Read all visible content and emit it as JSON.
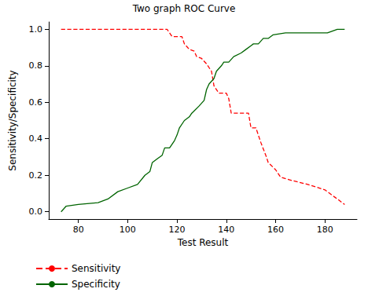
{
  "chart_data": {
    "type": "line",
    "title": "Two graph ROC Curve",
    "x_label": "Test Result",
    "y_label": "Sensitivity/Specificity",
    "xlim": [
      68,
      193
    ],
    "xticks": [
      80,
      100,
      120,
      140,
      160,
      180
    ],
    "ylim": [
      -0.04,
      1.04
    ],
    "yticks": [
      {
        "value": 0,
        "label": "0.0"
      },
      {
        "value": 0.2,
        "label": "0.2"
      },
      {
        "value": 0.4,
        "label": "0.4"
      },
      {
        "value": 0.6,
        "label": "0.6"
      },
      {
        "value": 0.8,
        "label": "0.8"
      },
      {
        "value": 1,
        "label": "1.0"
      }
    ],
    "grid": false,
    "legend": "bottom",
    "series": [
      {
        "name": "Sensitivity",
        "color": "#ff0000",
        "line_style": "dashed",
        "x": [
          73,
          116,
          118,
          122,
          123,
          125,
          127,
          128,
          130,
          132,
          134,
          135,
          137,
          140,
          141,
          142,
          149,
          150,
          152,
          154,
          156,
          157,
          160,
          162,
          167,
          173,
          180,
          184,
          188
        ],
        "values": [
          1.0,
          1.0,
          0.96,
          0.96,
          0.92,
          0.89,
          0.88,
          0.85,
          0.84,
          0.81,
          0.77,
          0.69,
          0.65,
          0.65,
          0.62,
          0.54,
          0.54,
          0.46,
          0.46,
          0.38,
          0.31,
          0.27,
          0.23,
          0.19,
          0.17,
          0.15,
          0.12,
          0.08,
          0.04
        ]
      },
      {
        "name": "Specificity",
        "color": "#006400",
        "line_style": "solid",
        "x": [
          73,
          75,
          80,
          88,
          92,
          96,
          100,
          104,
          107,
          109,
          110,
          112,
          114,
          115,
          117,
          119,
          120,
          121,
          123,
          125,
          126,
          129,
          131,
          132,
          133,
          135,
          136,
          138,
          139,
          141,
          143,
          146,
          148,
          150,
          151,
          153,
          155,
          157,
          159,
          164,
          181,
          185,
          188
        ],
        "values": [
          0.0,
          0.03,
          0.04,
          0.05,
          0.07,
          0.11,
          0.13,
          0.15,
          0.2,
          0.22,
          0.27,
          0.29,
          0.31,
          0.35,
          0.35,
          0.39,
          0.42,
          0.46,
          0.5,
          0.52,
          0.54,
          0.58,
          0.61,
          0.67,
          0.7,
          0.73,
          0.77,
          0.8,
          0.82,
          0.82,
          0.85,
          0.87,
          0.89,
          0.91,
          0.92,
          0.92,
          0.95,
          0.95,
          0.97,
          0.98,
          0.98,
          1.0,
          1.0
        ]
      }
    ]
  }
}
